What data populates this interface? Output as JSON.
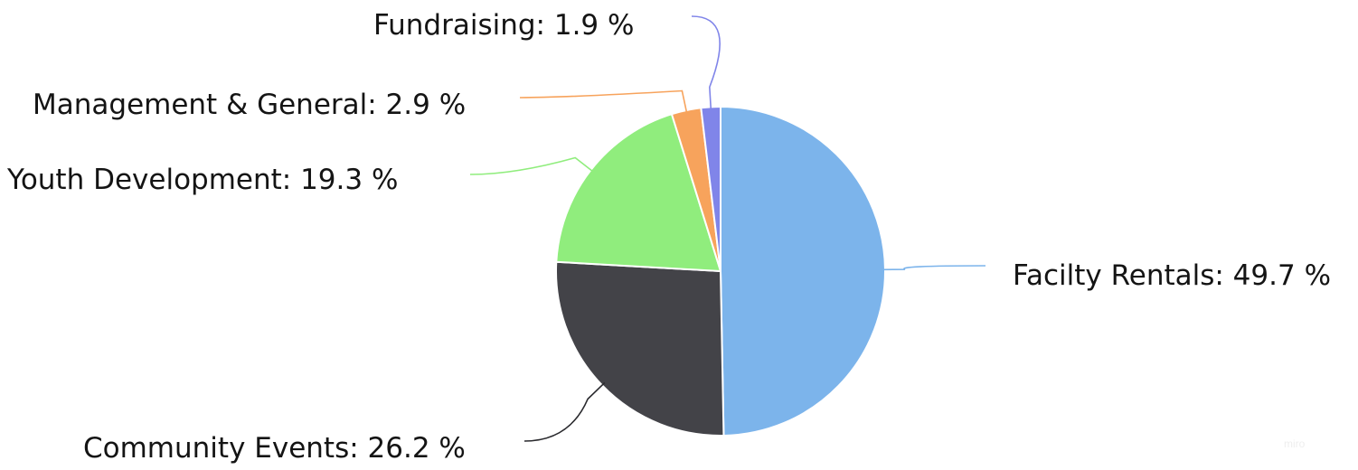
{
  "chart_data": {
    "type": "pie",
    "title": "",
    "slices": [
      {
        "label": "Facilty Rentals",
        "value": 49.7,
        "display": "Facilty Rentals: 49.7 %",
        "color": "#7cb4eb"
      },
      {
        "label": "Community Events",
        "value": 26.2,
        "display": "Community Events: 26.2 %",
        "color": "#434348"
      },
      {
        "label": "Youth Development",
        "value": 19.3,
        "display": "Youth Development: 19.3 %",
        "color": "#90ed7d"
      },
      {
        "label": "Management & General",
        "value": 2.9,
        "display": "Management & General: 2.9 %",
        "color": "#f7a35c"
      },
      {
        "label": "Fundraising",
        "value": 1.9,
        "display": "Fundraising: 1.9 %",
        "color": "#8085e9"
      }
    ],
    "start_angle": "12 o'clock",
    "direction": "clockwise",
    "legend": "none",
    "labels": "outside-with-connectors"
  },
  "watermark": "miro"
}
